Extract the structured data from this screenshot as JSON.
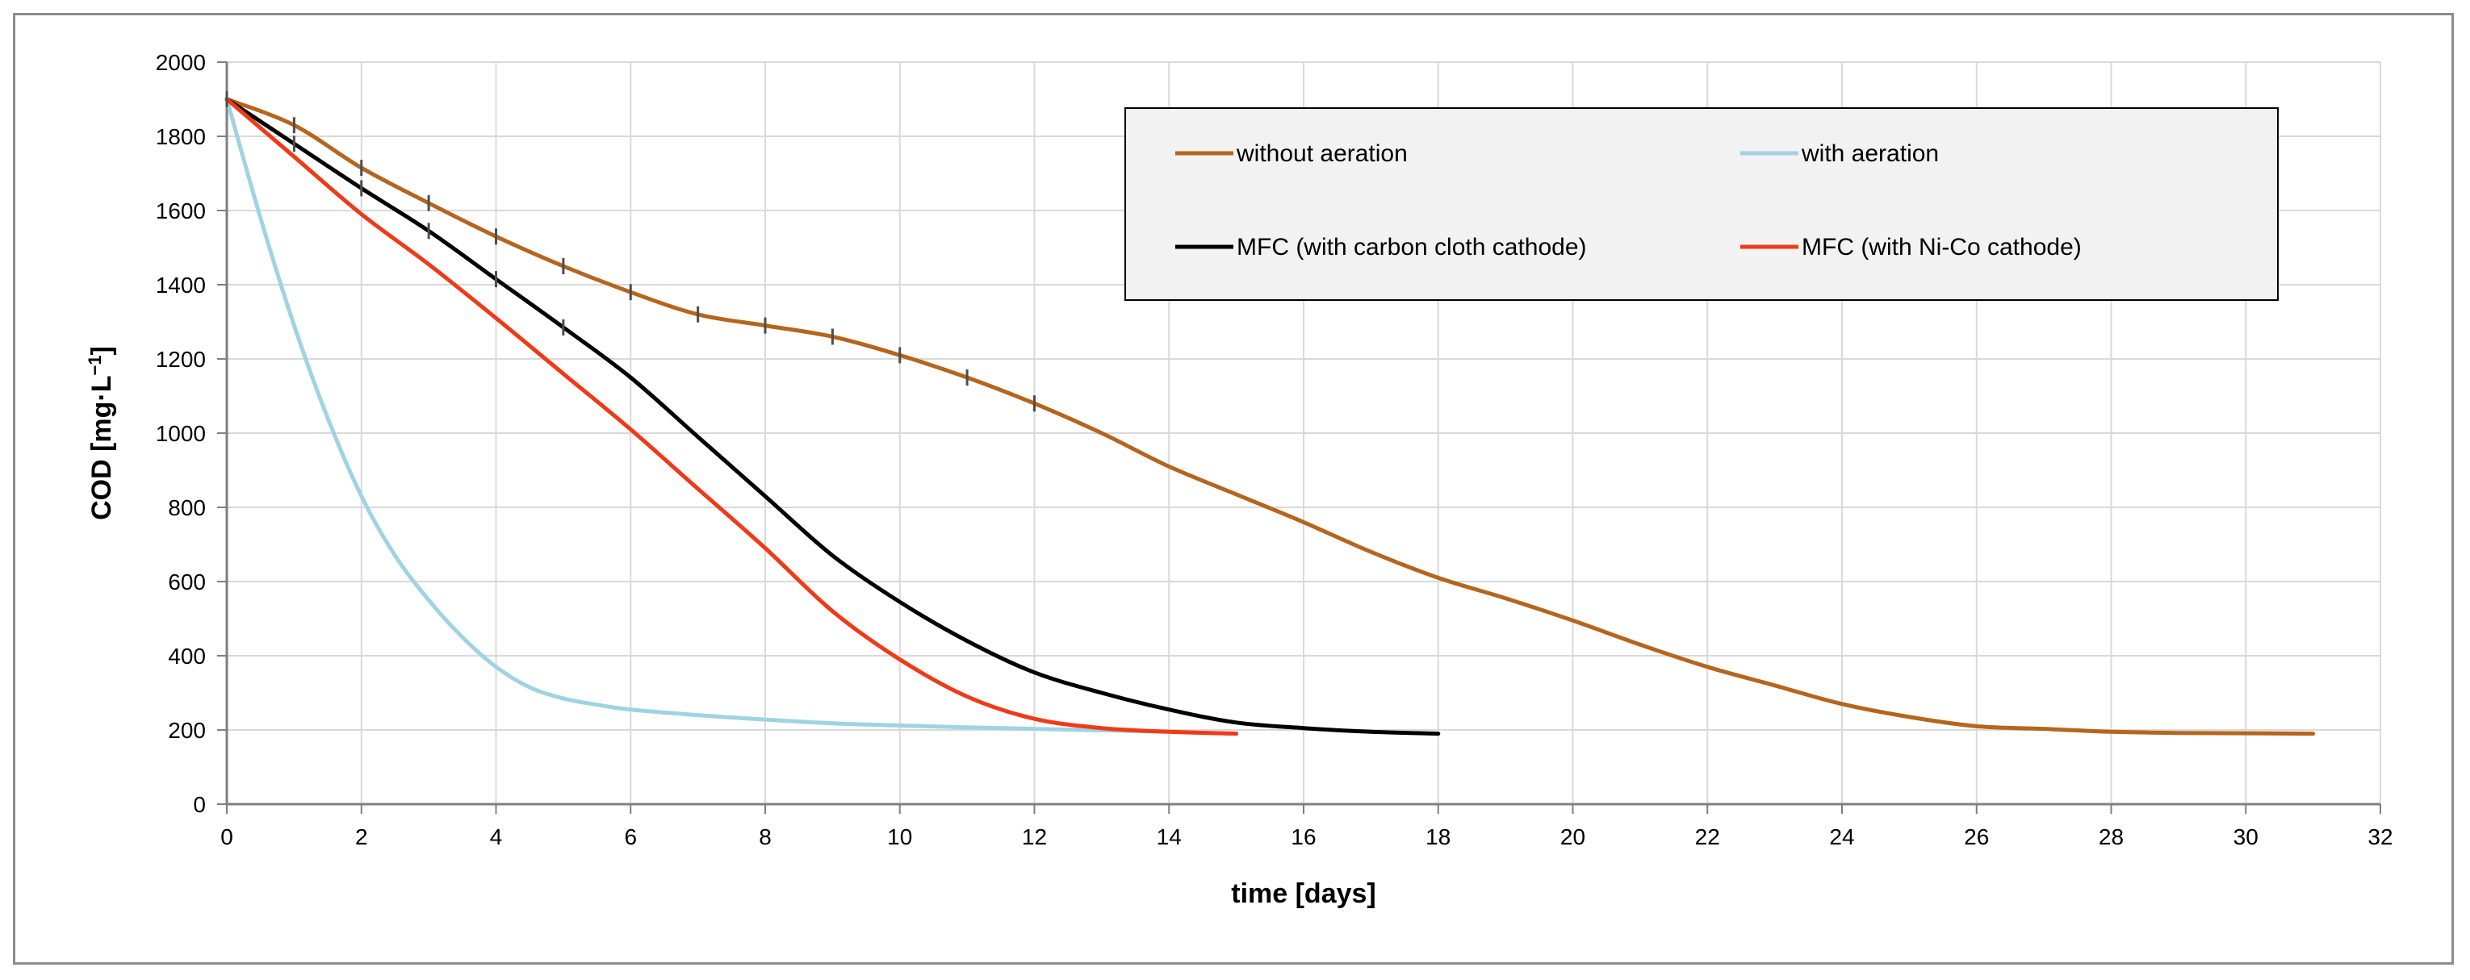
{
  "chart_data": {
    "type": "line",
    "title": "",
    "xlabel": "time [days]",
    "ylabel": "COD [mg·L",
    "ylabel_sup": "−1",
    "ylabel_close": "]",
    "xlim": [
      0,
      32
    ],
    "ylim": [
      0,
      2000
    ],
    "x_ticks": [
      0,
      2,
      4,
      6,
      8,
      10,
      12,
      14,
      16,
      18,
      20,
      22,
      24,
      26,
      28,
      30,
      32
    ],
    "y_ticks": [
      0,
      200,
      400,
      600,
      800,
      1000,
      1200,
      1400,
      1600,
      1800,
      2000
    ],
    "grid": true,
    "legend_position": "top-right",
    "series": [
      {
        "name": "without aeration",
        "color": "#b5651d",
        "x": [
          0,
          1,
          2,
          3,
          4,
          5,
          6,
          7,
          8,
          9,
          10,
          11,
          12,
          13,
          14,
          15,
          16,
          17,
          18,
          19,
          20,
          21,
          22,
          23,
          24,
          25,
          26,
          27,
          28,
          29,
          30,
          31
        ],
        "y": [
          1900,
          1830,
          1715,
          1620,
          1530,
          1450,
          1380,
          1320,
          1290,
          1260,
          1210,
          1150,
          1080,
          1000,
          910,
          835,
          760,
          680,
          610,
          555,
          495,
          430,
          370,
          320,
          270,
          235,
          210,
          203,
          195,
          192,
          191,
          190
        ]
      },
      {
        "name": "with aeration",
        "color": "#9fd3e3",
        "x": [
          0,
          0.5,
          1,
          1.5,
          2,
          2.5,
          3,
          3.5,
          4,
          4.5,
          5,
          5.5,
          6,
          7,
          8,
          9,
          10,
          11,
          12,
          13,
          14,
          15
        ],
        "y": [
          1900,
          1580,
          1290,
          1040,
          830,
          670,
          550,
          450,
          370,
          315,
          285,
          268,
          255,
          240,
          228,
          218,
          212,
          207,
          203,
          199,
          195,
          190
        ]
      },
      {
        "name": "MFC (with carbon cloth cathode)",
        "color": "#000000",
        "x": [
          0,
          1,
          2,
          3,
          4,
          5,
          6,
          7,
          8,
          9,
          10,
          11,
          12,
          13,
          14,
          15,
          16,
          17,
          18
        ],
        "y": [
          1900,
          1780,
          1660,
          1545,
          1415,
          1285,
          1150,
          990,
          830,
          670,
          545,
          440,
          355,
          300,
          255,
          220,
          205,
          195,
          190
        ]
      },
      {
        "name": "MFC (with Ni-Co cathode)",
        "color": "#f03a17",
        "x": [
          0,
          1,
          2,
          3,
          4,
          5,
          6,
          7,
          8,
          9,
          10,
          11,
          12,
          13,
          14,
          15
        ],
        "y": [
          1900,
          1745,
          1590,
          1455,
          1310,
          1160,
          1010,
          850,
          690,
          520,
          390,
          290,
          230,
          205,
          195,
          190
        ]
      }
    ],
    "marked_series": [
      {
        "name": "without aeration",
        "x": [
          1,
          2,
          3,
          4,
          5,
          6,
          7,
          8,
          9,
          10,
          11,
          12
        ]
      },
      {
        "name": "MFC (with carbon cloth cathode)",
        "x": [
          0,
          1,
          2,
          3,
          4,
          5
        ]
      }
    ]
  }
}
